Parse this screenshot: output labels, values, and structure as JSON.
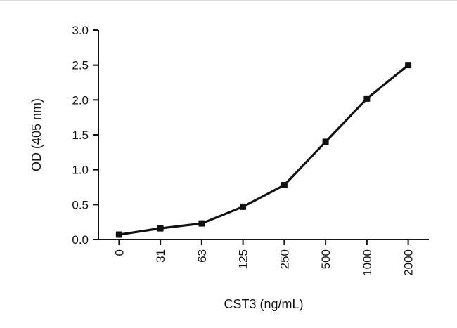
{
  "chart_data": {
    "type": "line",
    "categories": [
      "0",
      "31",
      "63",
      "125",
      "250",
      "500",
      "1000",
      "2000"
    ],
    "values": [
      0.07,
      0.16,
      0.23,
      0.47,
      0.78,
      1.4,
      2.02,
      2.5
    ],
    "title": "",
    "xlabel": "CST3 (ng/mL)",
    "ylabel": "OD (405 nm)",
    "ylim": [
      0,
      3
    ],
    "yticks": [
      0.0,
      0.5,
      1.0,
      1.5,
      2.0,
      2.5,
      3.0
    ],
    "grid": false,
    "legend": "none",
    "line_color": "#111111",
    "marker": "square",
    "marker_color": "#111111",
    "axis_color": "#111111"
  }
}
